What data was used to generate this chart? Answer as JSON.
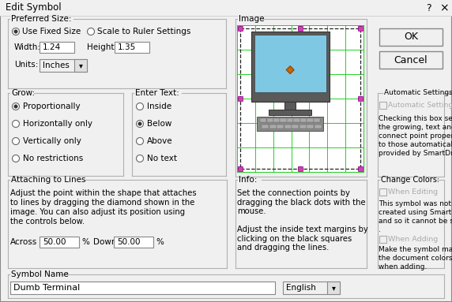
{
  "title": "Edit Symbol",
  "bg_color": "#f0f0f0",
  "border_color": "#999999",
  "text_color": "#000000",
  "disabled_text_color": "#aaaaaa",
  "ok_button": "OK",
  "cancel_button": "Cancel",
  "help_char": "?",
  "close_char": "×",
  "preferred_size_label": "Preferred Size:",
  "use_fixed_size": "Use Fixed Size",
  "scale_to_ruler": "Scale to Ruler Settings",
  "width_label": "Width:",
  "width_value": "1.24",
  "height_label": "Height:",
  "height_value": "1.35",
  "units_label": "Units:",
  "units_value": "Inches",
  "grow_label": "Grow:",
  "grow_options": [
    "Proportionally",
    "Horizontally only",
    "Vertically only",
    "No restrictions"
  ],
  "grow_selected": 0,
  "enter_text_label": "Enter Text:",
  "enter_text_options": [
    "Inside",
    "Below",
    "Above",
    "No text"
  ],
  "enter_text_selected": 1,
  "image_label": "Image",
  "attaching_label": "Attaching to Lines",
  "attaching_text1": "Adjust the point within the shape that attaches",
  "attaching_text2": "to lines by dragging the diamond shown in the",
  "attaching_text3": "image. You can also adjust its position using",
  "attaching_text4": "the controls below.",
  "across_label": "Across",
  "across_value": "50.00",
  "down_label": "Down",
  "down_value": "50.00",
  "percent_sign": "%",
  "info_label": "Info:",
  "info_text1": "Set the connection points by",
  "info_text2": "dragging the black dots with the",
  "info_text3": "mouse.",
  "info_text4": "",
  "info_text5": "Adjust the inside text margins by",
  "info_text6": "clicking on the black squares",
  "info_text7": "and dragging the lines.",
  "auto_settings_label": "Automatic Settings",
  "auto_settings_text1": "Checking this box sets",
  "auto_settings_text2": "the growing, text and",
  "auto_settings_text3": "connect point properties",
  "auto_settings_text4": "to those automatically",
  "auto_settings_text5": "provided by SmartDraw.",
  "change_colors_label": "Change Colors:",
  "when_editing_label": "When Editing",
  "change_text1": "This symbol was not",
  "change_text2": "created using SmartDraw",
  "change_text3": "and so it cannot be set",
  "change_text4": ".",
  "when_adding_label": "When Adding",
  "adding_text1": "Make the symbol match",
  "adding_text2": "the document colors",
  "adding_text3": "when adding.",
  "symbol_name_label": "Symbol Name",
  "symbol_name_value": "Dumb Terminal",
  "language_value": "English",
  "monitor_color": "#555555",
  "screen_color": "#7ec8e3",
  "keyboard_color": "#888888",
  "diamond_color": "#cc6600",
  "green_line_color": "#00cc00",
  "dashed_border_color": "#222222",
  "magenta_color": "#cc44aa"
}
